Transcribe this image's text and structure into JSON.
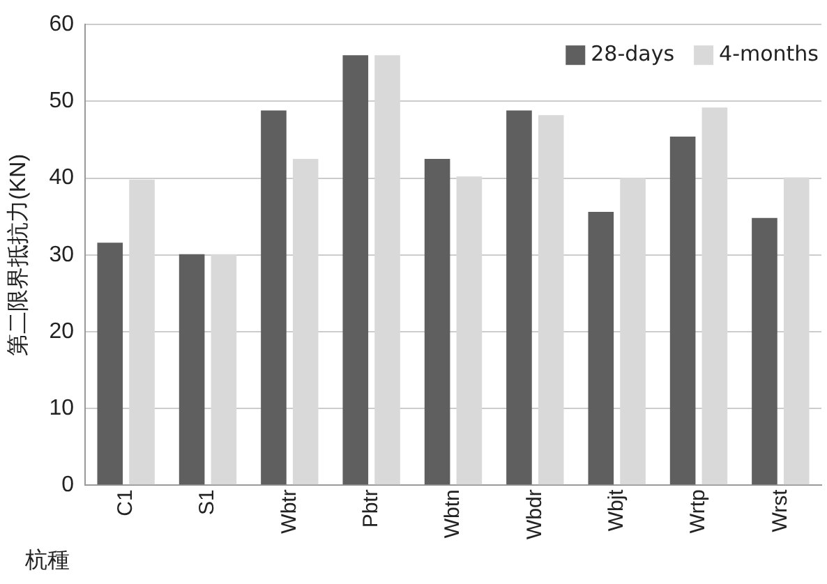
{
  "chart_data": {
    "type": "bar",
    "ylabel": "第二限界抵抗力(KN)",
    "xlabel": "杭種",
    "categories": [
      "C1",
      "S1",
      "Wbtr",
      "Pbtr",
      "Wbtn",
      "Wbdr",
      "Wbjt",
      "Wrtp",
      "Wrst"
    ],
    "series": [
      {
        "name": "28-days",
        "color": "#5f5f5f",
        "values": [
          31.6,
          30.1,
          48.8,
          56,
          42.5,
          48.8,
          35.6,
          45.4,
          34.8
        ]
      },
      {
        "name": "4-months",
        "color": "#d9d9d9",
        "values": [
          39.8,
          30.1,
          42.5,
          56,
          40.2,
          48.2,
          40,
          49.2,
          40.1
        ]
      }
    ],
    "ylim": [
      0,
      60
    ],
    "yticks": [
      0,
      10,
      20,
      30,
      40,
      50,
      60
    ],
    "grid": "y",
    "legend": "top right"
  }
}
